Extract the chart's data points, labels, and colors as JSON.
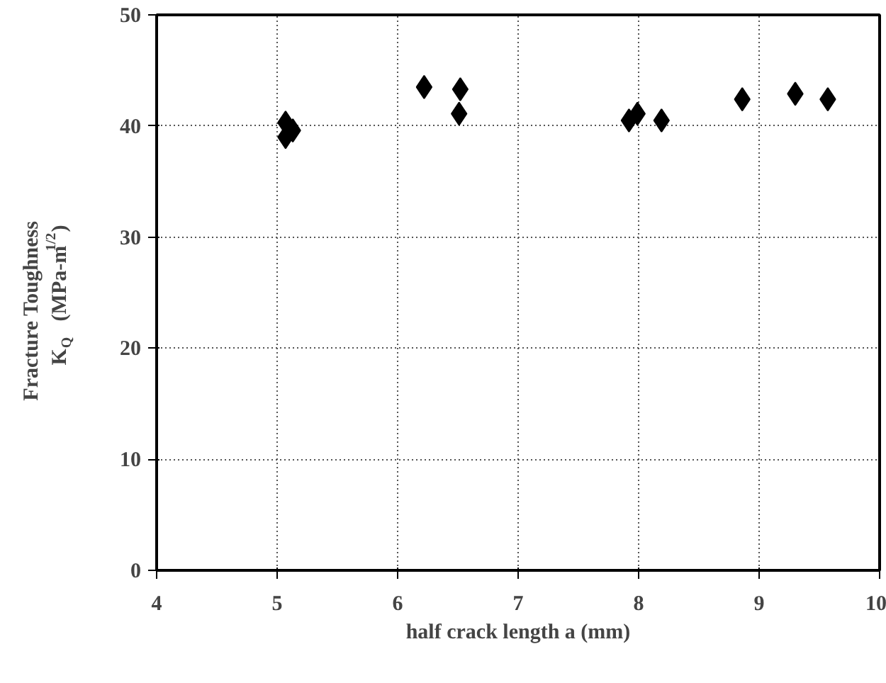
{
  "chart_data": {
    "type": "scatter",
    "xlabel": "half crack length a (mm)",
    "ylabel": "Fracture Toughness\nK$_{Q}$ (MPa-m$^{1/2}$)",
    "x": [
      5.07,
      5.13,
      5.07,
      6.22,
      6.52,
      6.51,
      7.92,
      7.99,
      8.19,
      8.86,
      9.3,
      9.57
    ],
    "series": [
      {
        "color": "#000000",
        "values": [
          40.3,
          39.6,
          39.0,
          43.5,
          43.3,
          41.1,
          40.5,
          41.1,
          40.5,
          42.4,
          42.9,
          42.4
        ]
      }
    ],
    "xlim": [
      4,
      10
    ],
    "ylim": [
      0,
      50
    ],
    "xticks": [
      4,
      5,
      6,
      7,
      8,
      9,
      10
    ],
    "yticks": [
      0,
      10,
      20,
      30,
      40,
      50
    ],
    "grid": true,
    "marker": "diamond"
  }
}
